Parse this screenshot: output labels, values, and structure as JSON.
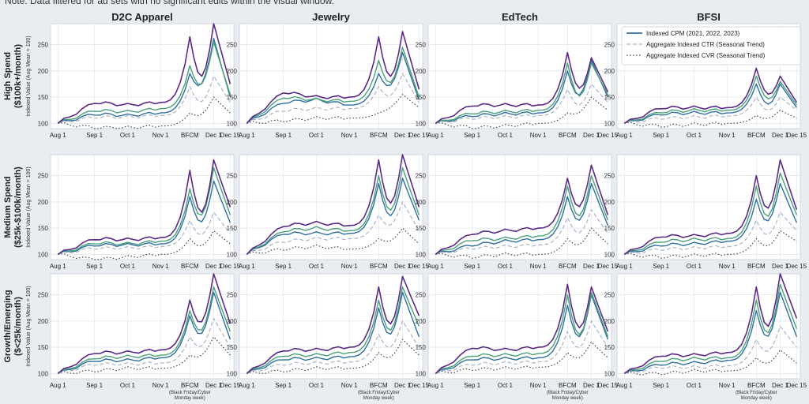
{
  "note": "Note: Data filtered for ad sets with no significant edits within the visual window.",
  "columns": [
    "D2C Apparel",
    "Jewelry",
    "EdTech",
    "BFSI"
  ],
  "rows": [
    {
      "label_line1": "High Spend",
      "label_line2": "($100k+/month)"
    },
    {
      "label_line1": "Medium Spend",
      "label_line2": "($25k-$100k/month)"
    },
    {
      "label_line1": "Growth/Emerging",
      "label_line2": "($<25k/month)"
    }
  ],
  "ylabel": "Indexed Value (Aug Mean = 100)",
  "x_ticks": [
    "Aug 1",
    "Sep 1",
    "Oct 1",
    "Nov 1",
    "BFCM",
    "Dec 1",
    "Dec 15"
  ],
  "bfcm_note": [
    "(Black Friday/Cyber",
    "Monday week)"
  ],
  "legend": [
    "Indexed CPM (2021, 2022, 2023)",
    "Aggregate Indexed CTR (Seasonal Trend)",
    "Aggregate Indexed CVR (Seasonal Trend)"
  ],
  "colors": {
    "cpm_2021": "#5b2a86",
    "cpm_2022": "#4aa07a",
    "cpm_2023": "#2f6f9f",
    "ctr": "#aab4c6",
    "cvr": "#444444",
    "panel_bg": "#ffffff",
    "grid": "#dfe3ea"
  },
  "chart_data": {
    "type": "line",
    "layout": "3x4 small multiples",
    "x": [
      "Aug 1",
      "Sep 1",
      "Oct 1",
      "Nov 1",
      "BFCM",
      "Dec 1",
      "Dec 15"
    ],
    "ylim": [
      90,
      290
    ],
    "y_ticks": [
      100,
      150,
      200,
      250
    ],
    "grid": true,
    "legend_position": "top-right",
    "panels": [
      {
        "row": "High Spend",
        "col": "D2C Apparel",
        "series": [
          {
            "name": "CPM 2021",
            "values": [
              100,
              140,
              135,
              140,
              265,
              290,
              175
            ]
          },
          {
            "name": "CPM 2022",
            "values": [
              100,
              125,
              122,
              128,
              210,
              255,
              155
            ]
          },
          {
            "name": "CPM 2023",
            "values": [
              100,
              118,
              115,
              120,
              195,
              262,
              150
            ]
          },
          {
            "name": "CTR",
            "values": [
              100,
              112,
              112,
              115,
              170,
              190,
              140
            ]
          },
          {
            "name": "CVR",
            "values": [
              100,
              92,
              92,
              95,
              120,
              150,
              120
            ]
          }
        ]
      },
      {
        "row": "High Spend",
        "col": "Jewelry",
        "series": [
          {
            "name": "CPM 2021",
            "values": [
              100,
              160,
              150,
              150,
              265,
              275,
              165
            ]
          },
          {
            "name": "CPM 2022",
            "values": [
              100,
              150,
              145,
              142,
              220,
              245,
              150
            ]
          },
          {
            "name": "CPM 2023",
            "values": [
              100,
              140,
              145,
              135,
              195,
              235,
              145
            ]
          },
          {
            "name": "CTR",
            "values": [
              100,
              125,
              128,
              128,
              170,
              195,
              140
            ]
          },
          {
            "name": "CVR",
            "values": [
              100,
              105,
              110,
              110,
              120,
              155,
              130
            ]
          }
        ]
      },
      {
        "row": "High Spend",
        "col": "EdTech",
        "series": [
          {
            "name": "CPM 2021",
            "values": [
              100,
              135,
              135,
              135,
              235,
              225,
              160
            ]
          },
          {
            "name": "CPM 2022",
            "values": [
              100,
              120,
              122,
              125,
              215,
              215,
              155
            ]
          },
          {
            "name": "CPM 2023",
            "values": [
              100,
              115,
              118,
              120,
              200,
              220,
              150
            ]
          },
          {
            "name": "CTR",
            "values": [
              100,
              110,
              112,
              115,
              165,
              175,
              140
            ]
          },
          {
            "name": "CVR",
            "values": [
              100,
              92,
              95,
              100,
              120,
              150,
              125
            ]
          }
        ]
      },
      {
        "row": "High Spend",
        "col": "BFSI",
        "series": [
          {
            "name": "CPM 2021",
            "values": [
              100,
              130,
              130,
              130,
              205,
              190,
              140
            ]
          },
          {
            "name": "CPM 2022",
            "values": [
              100,
              122,
              125,
              125,
              190,
              180,
              135
            ]
          },
          {
            "name": "CPM 2023",
            "values": [
              100,
              118,
              120,
              120,
              175,
              175,
              130
            ]
          },
          {
            "name": "CTR",
            "values": [
              100,
              110,
              112,
              114,
              150,
              150,
              125
            ]
          },
          {
            "name": "CVR",
            "values": [
              100,
              95,
              98,
              100,
              115,
              125,
              110
            ]
          }
        ]
      },
      {
        "row": "Medium Spend",
        "col": "D2C Apparel",
        "series": [
          {
            "name": "CPM 2021",
            "values": [
              100,
              130,
              128,
              132,
              260,
              280,
              190
            ]
          },
          {
            "name": "CPM 2022",
            "values": [
              100,
              122,
              120,
              125,
              225,
              265,
              175
            ]
          },
          {
            "name": "CPM 2023",
            "values": [
              100,
              118,
              118,
              120,
              210,
              240,
              160
            ]
          },
          {
            "name": "CTR",
            "values": [
              100,
              112,
              112,
              115,
              165,
              180,
              140
            ]
          },
          {
            "name": "CVR",
            "values": [
              100,
              90,
              95,
              100,
              130,
              145,
              120
            ]
          }
        ]
      },
      {
        "row": "Medium Spend",
        "col": "Jewelry",
        "series": [
          {
            "name": "CPM 2021",
            "values": [
              100,
              155,
              160,
              155,
              280,
              290,
              190
            ]
          },
          {
            "name": "CPM 2022",
            "values": [
              100,
              145,
              150,
              145,
              250,
              265,
              175
            ]
          },
          {
            "name": "CPM 2023",
            "values": [
              100,
              140,
              140,
              140,
              235,
              245,
              165
            ]
          },
          {
            "name": "CTR",
            "values": [
              100,
              125,
              130,
              130,
              175,
              200,
              145
            ]
          },
          {
            "name": "CVR",
            "values": [
              100,
              110,
              115,
              110,
              130,
              150,
              120
            ]
          }
        ]
      },
      {
        "row": "Medium Spend",
        "col": "EdTech",
        "series": [
          {
            "name": "CPM 2021",
            "values": [
              100,
              140,
              145,
              150,
              245,
              270,
              175
            ]
          },
          {
            "name": "CPM 2022",
            "values": [
              100,
              128,
              130,
              135,
              230,
              250,
              165
            ]
          },
          {
            "name": "CPM 2023",
            "values": [
              100,
              118,
              125,
              128,
              210,
              235,
              155
            ]
          },
          {
            "name": "CTR",
            "values": [
              100,
              112,
              115,
              118,
              170,
              185,
              140
            ]
          },
          {
            "name": "CVR",
            "values": [
              100,
              95,
              100,
              100,
              130,
              150,
              120
            ]
          }
        ]
      },
      {
        "row": "Medium Spend",
        "col": "BFSI",
        "series": [
          {
            "name": "CPM 2021",
            "values": [
              100,
              135,
              135,
              140,
              250,
              280,
              185
            ]
          },
          {
            "name": "CPM 2022",
            "values": [
              100,
              125,
              128,
              130,
              230,
              255,
              175
            ]
          },
          {
            "name": "CPM 2023",
            "values": [
              100,
              118,
              120,
              125,
              205,
              235,
              160
            ]
          },
          {
            "name": "CTR",
            "values": [
              100,
              110,
              112,
              115,
              165,
              180,
              145
            ]
          },
          {
            "name": "CVR",
            "values": [
              100,
              95,
              98,
              100,
              130,
              145,
              125
            ]
          }
        ]
      },
      {
        "row": "Growth/Emerging",
        "col": "D2C Apparel",
        "series": [
          {
            "name": "CPM 2021",
            "values": [
              100,
              140,
              140,
              145,
              240,
              290,
              195
            ]
          },
          {
            "name": "CPM 2022",
            "values": [
              100,
              130,
              132,
              135,
              220,
              265,
              180
            ]
          },
          {
            "name": "CPM 2023",
            "values": [
              100,
              125,
              125,
              130,
              210,
              255,
              165
            ]
          },
          {
            "name": "CTR",
            "values": [
              100,
              118,
              118,
              120,
              170,
              205,
              150
            ]
          },
          {
            "name": "CVR",
            "values": [
              100,
              105,
              110,
              110,
              135,
              170,
              135
            ]
          }
        ]
      },
      {
        "row": "Growth/Emerging",
        "col": "Jewelry",
        "series": [
          {
            "name": "CPM 2021",
            "values": [
              100,
              145,
              145,
              150,
              265,
              285,
              210
            ]
          },
          {
            "name": "CPM 2022",
            "values": [
              100,
              135,
              135,
              140,
              240,
              265,
              190
            ]
          },
          {
            "name": "CPM 2023",
            "values": [
              100,
              128,
              128,
              132,
              225,
              255,
              170
            ]
          },
          {
            "name": "CTR",
            "values": [
              100,
              118,
              120,
              122,
              175,
              200,
              150
            ]
          },
          {
            "name": "CVR",
            "values": [
              100,
              105,
              110,
              110,
              140,
              165,
              135
            ]
          }
        ]
      },
      {
        "row": "Growth/Emerging",
        "col": "EdTech",
        "series": [
          {
            "name": "CPM 2021",
            "values": [
              100,
              150,
              145,
              150,
              270,
              265,
              180
            ]
          },
          {
            "name": "CPM 2022",
            "values": [
              100,
              135,
              135,
              138,
              250,
              255,
              170
            ]
          },
          {
            "name": "CPM 2023",
            "values": [
              100,
              128,
              128,
              130,
              230,
              250,
              165
            ]
          },
          {
            "name": "CTR",
            "values": [
              100,
              118,
              120,
              122,
              180,
              200,
              150
            ]
          },
          {
            "name": "CVR",
            "values": [
              100,
              108,
              110,
              112,
              140,
              160,
              130
            ]
          }
        ]
      },
      {
        "row": "Growth/Emerging",
        "col": "BFSI",
        "series": [
          {
            "name": "CPM 2021",
            "values": [
              100,
              135,
              135,
              140,
              265,
              290,
              205
            ]
          },
          {
            "name": "CPM 2022",
            "values": [
              100,
              125,
              128,
              130,
              240,
              270,
              185
            ]
          },
          {
            "name": "CPM 2023",
            "values": [
              100,
              118,
              120,
              125,
              220,
              255,
              170
            ]
          },
          {
            "name": "CTR",
            "values": [
              100,
              112,
              112,
              115,
              165,
              190,
              150
            ]
          },
          {
            "name": "CVR",
            "values": [
              100,
              100,
              105,
              105,
              130,
              145,
              120
            ]
          }
        ]
      }
    ]
  }
}
